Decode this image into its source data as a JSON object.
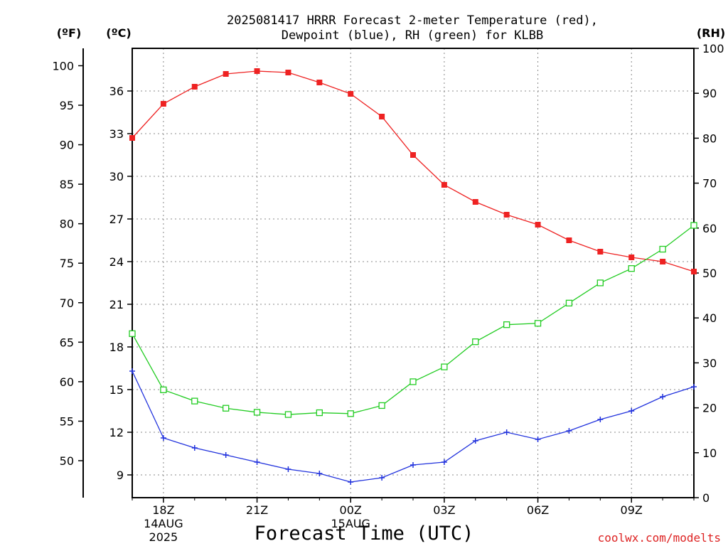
{
  "chart_data": {
    "type": "line",
    "title_line1": "2025081417 HRRR Forecast 2-meter Temperature (red),",
    "title_line2": "Dewpoint (blue), RH (green) for KLBB",
    "unit_f": "(ºF)",
    "unit_c": "(ºC)",
    "unit_rh": "(RH)",
    "xlabel": "Forecast Time (UTC)",
    "credit": "coolwx.com/modelts",
    "x_hours": [
      17,
      18,
      19,
      20,
      21,
      22,
      23,
      24,
      25,
      26,
      27,
      28,
      29,
      30,
      31,
      32,
      33,
      34,
      35
    ],
    "xlim": [
      17,
      35
    ],
    "ylim_c": [
      7.4,
      39.0
    ],
    "ylim_rh": [
      0,
      100
    ],
    "f_ticks": [
      "100",
      "95",
      "90",
      "85",
      "80",
      "75",
      "70",
      "65",
      "60",
      "55",
      "50"
    ],
    "c_ticks": [
      "36",
      "33",
      "30",
      "27",
      "24",
      "21",
      "18",
      "15",
      "12",
      "9"
    ],
    "rh_ticks": [
      "100",
      "90",
      "80",
      "70",
      "60",
      "50",
      "40",
      "30",
      "20",
      "10",
      "0"
    ],
    "x_ticks": [
      {
        "hour": 18,
        "label": "18Z",
        "sub1": "14AUG",
        "sub2": "2025"
      },
      {
        "hour": 21,
        "label": "21Z",
        "sub1": "",
        "sub2": ""
      },
      {
        "hour": 24,
        "label": "00Z",
        "sub1": "15AUG",
        "sub2": ""
      },
      {
        "hour": 27,
        "label": "03Z",
        "sub1": "",
        "sub2": ""
      },
      {
        "hour": 30,
        "label": "06Z",
        "sub1": "",
        "sub2": ""
      },
      {
        "hour": 33,
        "label": "09Z",
        "sub1": "",
        "sub2": ""
      }
    ],
    "series": [
      {
        "name": "Temperature",
        "axis": "c",
        "color": "#ee2222",
        "marker": "filled-square",
        "values": [
          32.7,
          35.1,
          36.3,
          37.2,
          37.4,
          37.3,
          36.6,
          35.8,
          34.2,
          31.5,
          29.4,
          28.2,
          27.3,
          26.6,
          25.5,
          24.7,
          24.3,
          24.0,
          23.3
        ]
      },
      {
        "name": "Dewpoint",
        "axis": "c",
        "color": "#2233dd",
        "marker": "plus",
        "values": [
          16.3,
          11.6,
          10.9,
          10.4,
          9.9,
          9.4,
          9.1,
          8.5,
          8.8,
          9.7,
          9.9,
          11.4,
          12.0,
          11.5,
          12.1,
          12.9,
          13.5,
          14.5,
          15.2
        ]
      },
      {
        "name": "RH",
        "axis": "rh",
        "color": "#22cc22",
        "marker": "open-square",
        "values": [
          36.5,
          24.0,
          21.5,
          19.9,
          19.0,
          18.5,
          18.9,
          18.7,
          20.5,
          25.8,
          29.1,
          34.7,
          38.5,
          38.8,
          43.3,
          47.8,
          51.0,
          55.3,
          60.6
        ]
      }
    ],
    "grid": "dotted"
  }
}
